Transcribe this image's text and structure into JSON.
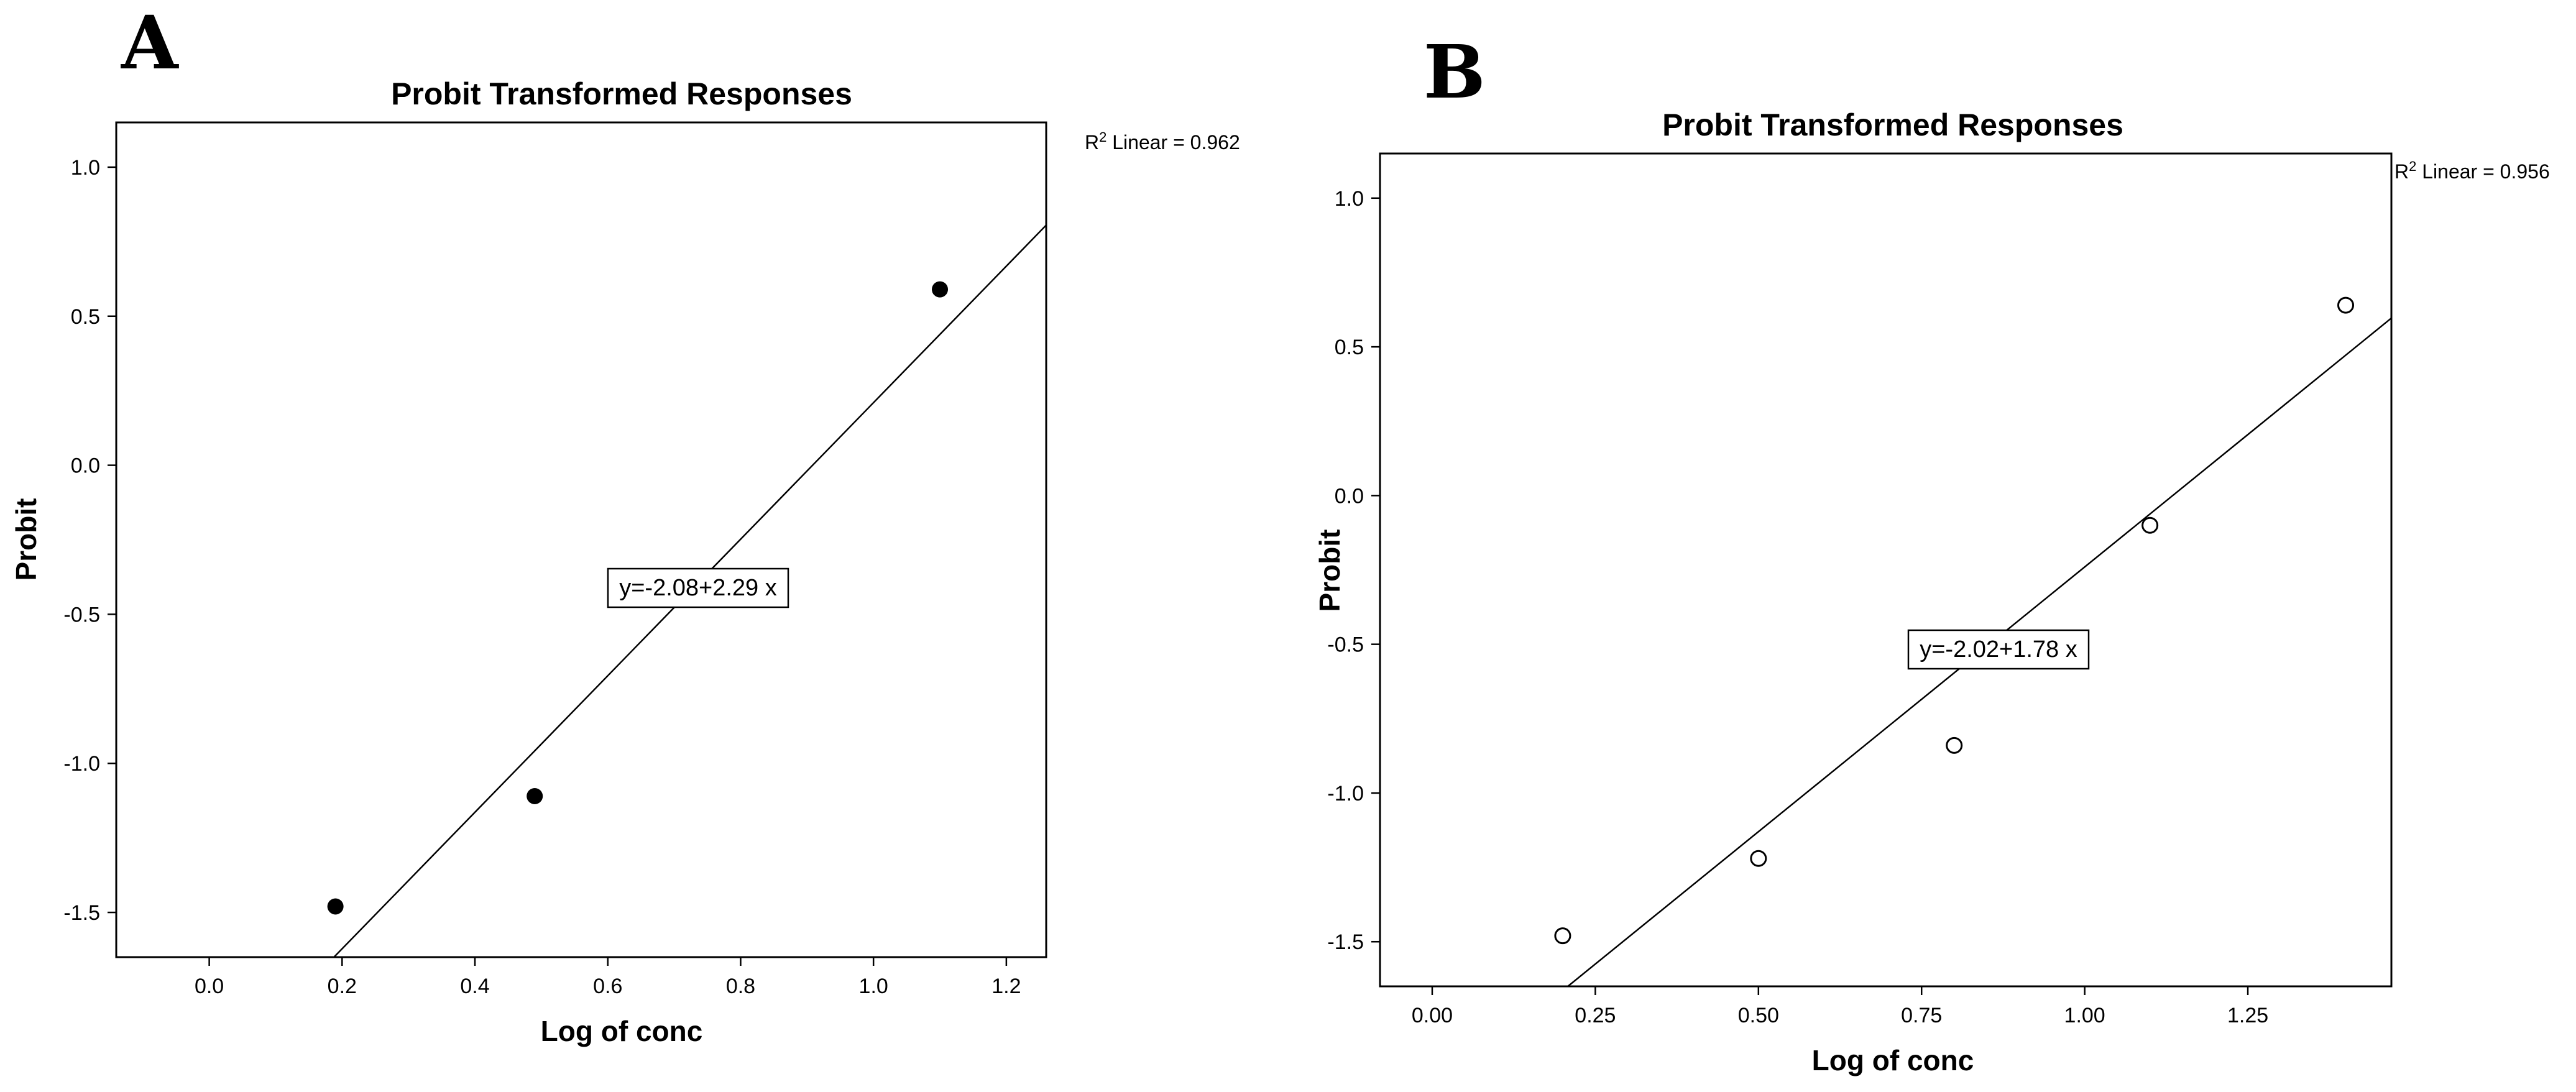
{
  "chart_data": [
    {
      "panel": "A",
      "type": "scatter",
      "title": "Probit Transformed Responses",
      "xlabel": "Log of conc",
      "ylabel": "Probit",
      "xlim": [
        -0.14,
        1.26
      ],
      "ylim": [
        -1.65,
        1.15
      ],
      "xticks": [
        0.0,
        0.2,
        0.4,
        0.6,
        0.8,
        1.0,
        1.2
      ],
      "xtick_labels": [
        "0.0",
        "0.2",
        "0.4",
        "0.6",
        "0.8",
        "1.0",
        "1.2"
      ],
      "yticks": [
        1.0,
        0.5,
        0.0,
        -0.5,
        -1.0,
        -1.5
      ],
      "ytick_labels": [
        "1.0",
        "0.5",
        "0.0",
        "-0.5",
        "-1.0",
        "-1.5"
      ],
      "marker": "filled",
      "points": [
        {
          "x": 0.19,
          "y": -1.48
        },
        {
          "x": 0.49,
          "y": -1.11
        },
        {
          "x": 1.1,
          "y": 0.59
        }
      ],
      "fit": {
        "intercept": -2.08,
        "slope": 2.29
      },
      "r2_prefix": "R",
      "r2_sup": "2",
      "r2_text": " Linear = 0.962",
      "equation_label": "y=-2.08+2.29 x"
    },
    {
      "panel": "B",
      "type": "scatter",
      "title": "Probit Transformed Responses",
      "xlabel": "Log of conc",
      "ylabel": "Probit",
      "xlim": [
        -0.08,
        1.47
      ],
      "ylim": [
        -1.65,
        1.15
      ],
      "xticks": [
        0.0,
        0.25,
        0.5,
        0.75,
        1.0,
        1.25
      ],
      "xtick_labels": [
        "0.00",
        "0.25",
        "0.50",
        "0.75",
        "1.00",
        "1.25"
      ],
      "yticks": [
        1.0,
        0.5,
        0.0,
        -0.5,
        -1.0,
        -1.5
      ],
      "ytick_labels": [
        "1.0",
        "0.5",
        "0.0",
        "-0.5",
        "-1.0",
        "-1.5"
      ],
      "marker": "hollow",
      "points": [
        {
          "x": 0.2,
          "y": -1.48
        },
        {
          "x": 0.5,
          "y": -1.22
        },
        {
          "x": 0.8,
          "y": -0.84
        },
        {
          "x": 1.1,
          "y": -0.1
        },
        {
          "x": 1.4,
          "y": 0.64
        }
      ],
      "fit": {
        "intercept": -2.02,
        "slope": 1.78
      },
      "r2_prefix": "R",
      "r2_sup": "2",
      "r2_text": " Linear = 0.956",
      "equation_label": "y=-2.02+1.78 x"
    }
  ]
}
